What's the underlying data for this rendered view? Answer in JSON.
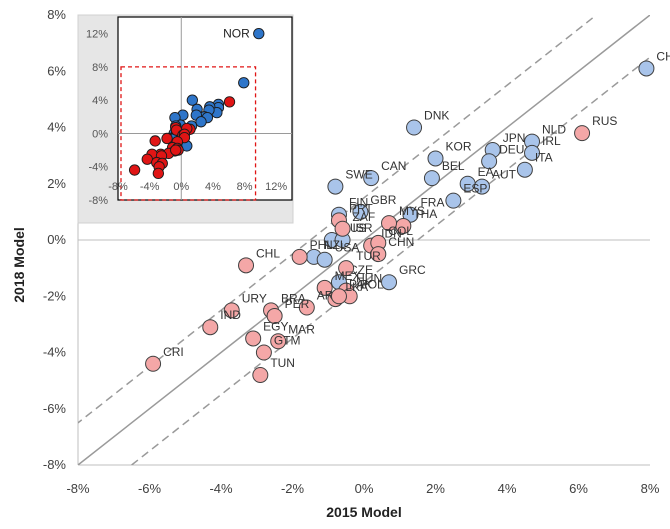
{
  "chart_data": [
    {
      "type": "scatter",
      "xlabel": "2015 Model",
      "ylabel": "2018 Model",
      "xlim": [
        -0.08,
        0.08
      ],
      "ylim": [
        -0.08,
        0.08
      ],
      "xticks": [
        "-8%",
        "-6%",
        "-4%",
        "-2%",
        "0%",
        "2%",
        "4%",
        "6%",
        "8%"
      ],
      "yticks": [
        "8%",
        "6%",
        "4%",
        "2%",
        "0%",
        "-2%",
        "-4%",
        "-6%",
        "-8%"
      ],
      "reference_lines": [
        "45-degree line (y = x)",
        "dashed band y = x ± 1.5%"
      ],
      "colors": {
        "advanced": "#a9c4ea",
        "emerging": "#f4a7a7",
        "line": "#9a9a9a"
      },
      "series": [
        {
          "color": "#a9c4ea",
          "points": [
            {
              "label": "CHE",
              "x": 0.079,
              "y": 0.061
            },
            {
              "label": "NLD",
              "x": 0.047,
              "y": 0.035
            },
            {
              "label": "IRL",
              "x": 0.047,
              "y": 0.031
            },
            {
              "label": "JPN",
              "x": 0.036,
              "y": 0.032
            },
            {
              "label": "ITA",
              "x": 0.045,
              "y": 0.025
            },
            {
              "label": "DNK",
              "x": 0.014,
              "y": 0.04
            },
            {
              "label": "KOR",
              "x": 0.02,
              "y": 0.029
            },
            {
              "label": "DEU",
              "x": 0.035,
              "y": 0.028
            },
            {
              "label": "EA",
              "x": 0.029,
              "y": 0.02
            },
            {
              "label": "AUT",
              "x": 0.033,
              "y": 0.019
            },
            {
              "label": "BEL",
              "x": 0.019,
              "y": 0.022
            },
            {
              "label": "ESP",
              "x": 0.025,
              "y": 0.014
            },
            {
              "label": "CAN",
              "x": 0.002,
              "y": 0.022
            },
            {
              "label": "SWE",
              "x": -0.008,
              "y": 0.019
            },
            {
              "label": "GBR",
              "x": -0.001,
              "y": 0.01
            },
            {
              "label": "FRA",
              "x": 0.013,
              "y": 0.009
            },
            {
              "label": "FIN",
              "x": -0.007,
              "y": 0.009
            },
            {
              "label": "AUS",
              "x": -0.009,
              "y": 0.0
            },
            {
              "label": "ISR",
              "x": -0.006,
              "y": 0.0
            },
            {
              "label": "NZL",
              "x": -0.014,
              "y": -0.006
            },
            {
              "label": "USA",
              "x": -0.011,
              "y": -0.007
            },
            {
              "label": "CZE",
              "x": -0.007,
              "y": -0.015
            },
            {
              "label": "GRC",
              "x": 0.007,
              "y": -0.015
            }
          ]
        },
        {
          "color": "#f4a7a7",
          "points": [
            {
              "label": "RUS",
              "x": 0.061,
              "y": 0.038
            },
            {
              "label": "THA",
              "x": 0.011,
              "y": 0.005
            },
            {
              "label": "MYS",
              "x": 0.007,
              "y": 0.006
            },
            {
              "label": "PRT",
              "x": -0.007,
              "y": 0.007
            },
            {
              "label": "ZAF",
              "x": -0.006,
              "y": 0.004
            },
            {
              "label": "IDN",
              "x": 0.002,
              "y": -0.002
            },
            {
              "label": "COL",
              "x": 0.004,
              "y": -0.001
            },
            {
              "label": "CHN",
              "x": 0.004,
              "y": -0.005
            },
            {
              "label": "PHL",
              "x": -0.018,
              "y": -0.006
            },
            {
              "label": "CHL",
              "x": -0.033,
              "y": -0.009
            },
            {
              "label": "TUR",
              "x": -0.005,
              "y": -0.01
            },
            {
              "label": "BRA",
              "x": -0.026,
              "y": -0.025
            },
            {
              "label": "MEX",
              "x": -0.011,
              "y": -0.017
            },
            {
              "label": "HUN",
              "x": -0.005,
              "y": -0.018
            },
            {
              "label": "POL",
              "x": -0.004,
              "y": -0.02
            },
            {
              "label": "LKA",
              "x": -0.008,
              "y": -0.021
            },
            {
              "label": "ARG",
              "x": -0.016,
              "y": -0.024
            },
            {
              "label": "PAK",
              "x": -0.007,
              "y": -0.02
            },
            {
              "label": "URY",
              "x": -0.037,
              "y": -0.025
            },
            {
              "label": "PER",
              "x": -0.025,
              "y": -0.027
            },
            {
              "label": "IND",
              "x": -0.043,
              "y": -0.031
            },
            {
              "label": "EGY",
              "x": -0.031,
              "y": -0.035
            },
            {
              "label": "MAR",
              "x": -0.024,
              "y": -0.036
            },
            {
              "label": "GTM",
              "x": -0.028,
              "y": -0.04
            },
            {
              "label": "CRI",
              "x": -0.059,
              "y": -0.044
            },
            {
              "label": "TUN",
              "x": -0.029,
              "y": -0.048
            }
          ]
        }
      ]
    },
    {
      "type": "scatter",
      "xlim": [
        -0.08,
        0.14
      ],
      "ylim": [
        -0.08,
        0.14
      ],
      "xticks": [
        "-8%",
        "-4%",
        "0%",
        "4%",
        "8%",
        "12%"
      ],
      "yticks": [
        "12%",
        "8%",
        "4%",
        "0%",
        "-4%",
        "-8%"
      ],
      "inner_box": "dashed red box from -8% to 8% on both axes",
      "colors": {
        "advanced": "#2e75c9",
        "emerging": "#e01515",
        "box": "#e01515",
        "panel": "#e6e6e6"
      },
      "callout": "NOR",
      "series": [
        {
          "color": "#2e75c9",
          "points": [
            {
              "label": "NOR",
              "x": 0.098,
              "y": 0.12
            },
            {
              "x": 0.079,
              "y": 0.061
            },
            {
              "x": 0.047,
              "y": 0.035
            },
            {
              "x": 0.047,
              "y": 0.031
            },
            {
              "x": 0.036,
              "y": 0.032
            },
            {
              "x": 0.045,
              "y": 0.025
            },
            {
              "x": 0.014,
              "y": 0.04
            },
            {
              "x": 0.02,
              "y": 0.029
            },
            {
              "x": 0.035,
              "y": 0.028
            },
            {
              "x": 0.029,
              "y": 0.02
            },
            {
              "x": 0.033,
              "y": 0.019
            },
            {
              "x": 0.019,
              "y": 0.022
            },
            {
              "x": 0.025,
              "y": 0.014
            },
            {
              "x": 0.002,
              "y": 0.022
            },
            {
              "x": -0.008,
              "y": 0.019
            },
            {
              "x": -0.001,
              "y": 0.01
            },
            {
              "x": 0.013,
              "y": 0.009
            },
            {
              "x": -0.007,
              "y": 0.009
            },
            {
              "x": -0.009,
              "y": 0.0
            },
            {
              "x": -0.006,
              "y": 0.0
            },
            {
              "x": -0.014,
              "y": -0.006
            },
            {
              "x": -0.011,
              "y": -0.007
            },
            {
              "x": -0.007,
              "y": -0.015
            },
            {
              "x": 0.007,
              "y": -0.015
            }
          ]
        },
        {
          "color": "#e01515",
          "points": [
            {
              "x": 0.061,
              "y": 0.038
            },
            {
              "x": 0.011,
              "y": 0.005
            },
            {
              "x": 0.007,
              "y": 0.006
            },
            {
              "x": -0.007,
              "y": 0.007
            },
            {
              "x": -0.006,
              "y": 0.004
            },
            {
              "x": 0.002,
              "y": -0.002
            },
            {
              "x": 0.004,
              "y": -0.001
            },
            {
              "x": 0.004,
              "y": -0.005
            },
            {
              "x": -0.018,
              "y": -0.006
            },
            {
              "x": -0.033,
              "y": -0.009
            },
            {
              "x": -0.005,
              "y": -0.01
            },
            {
              "x": -0.026,
              "y": -0.025
            },
            {
              "x": -0.011,
              "y": -0.017
            },
            {
              "x": -0.005,
              "y": -0.018
            },
            {
              "x": -0.004,
              "y": -0.02
            },
            {
              "x": -0.008,
              "y": -0.021
            },
            {
              "x": -0.016,
              "y": -0.024
            },
            {
              "x": -0.007,
              "y": -0.02
            },
            {
              "x": -0.037,
              "y": -0.025
            },
            {
              "x": -0.025,
              "y": -0.027
            },
            {
              "x": -0.043,
              "y": -0.031
            },
            {
              "x": -0.031,
              "y": -0.035
            },
            {
              "x": -0.024,
              "y": -0.036
            },
            {
              "x": -0.028,
              "y": -0.04
            },
            {
              "x": -0.059,
              "y": -0.044
            },
            {
              "x": -0.029,
              "y": -0.048
            }
          ]
        }
      ]
    }
  ]
}
